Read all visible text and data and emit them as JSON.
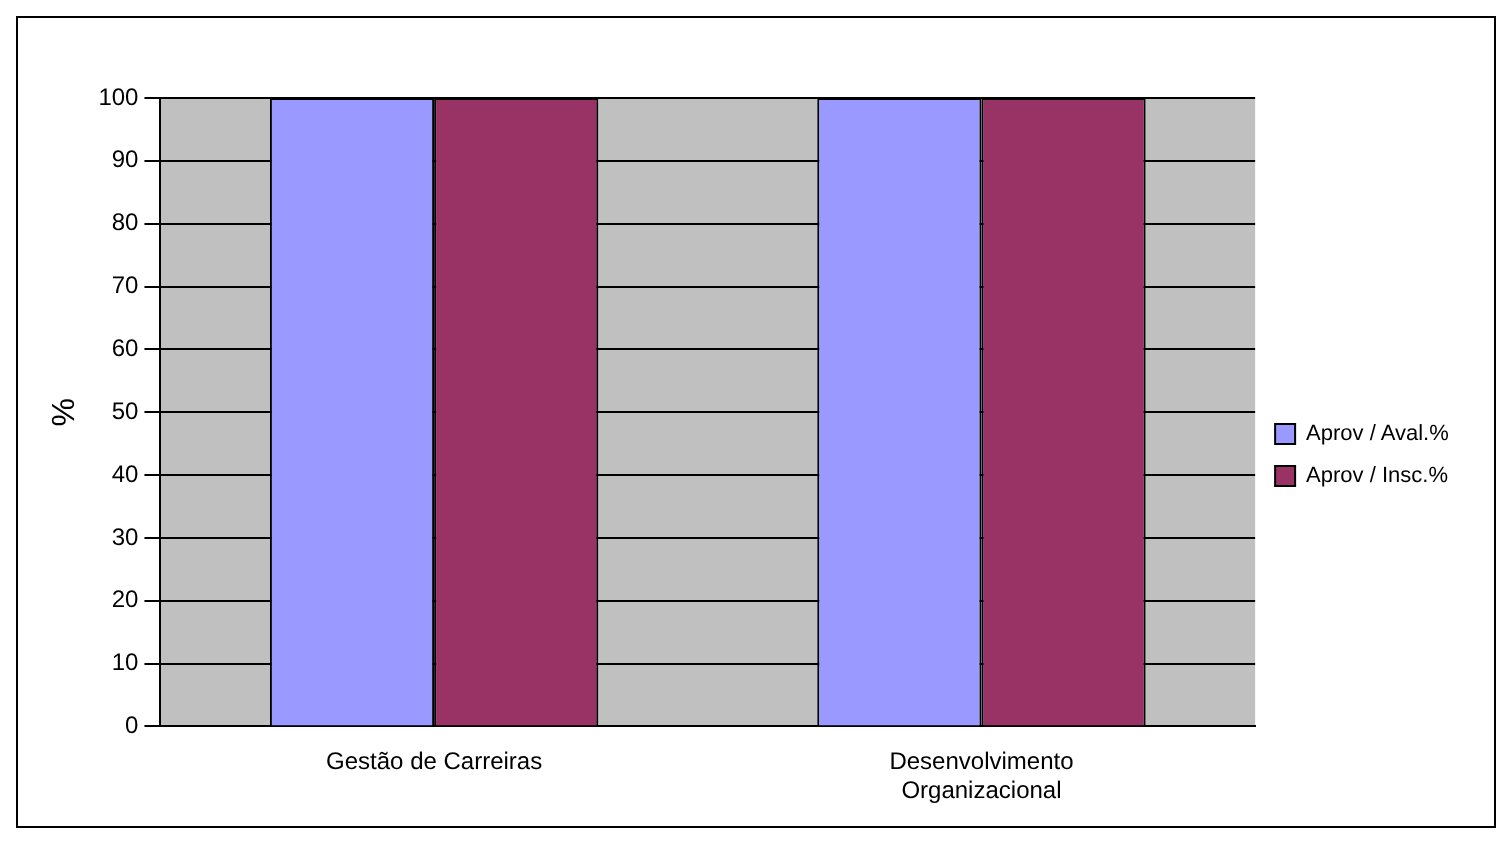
{
  "chart_data": {
    "type": "bar",
    "ylabel": "%",
    "categories": [
      "Gestão de Carreiras",
      "Desenvolvimento Organizacional"
    ],
    "series": [
      {
        "name": "Aprov / Aval.%",
        "color": "#9999ff",
        "values": [
          100,
          100
        ]
      },
      {
        "name": "Aprov / Insc.%",
        "color": "#993366",
        "values": [
          100,
          100
        ]
      }
    ],
    "ylim": [
      0,
      100
    ],
    "yticks": [
      0,
      10,
      20,
      30,
      40,
      50,
      60,
      70,
      80,
      90,
      100
    ],
    "grid": "y",
    "legend": "right"
  }
}
